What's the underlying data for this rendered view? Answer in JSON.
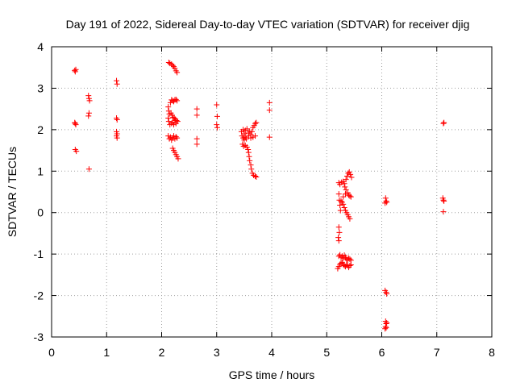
{
  "chart_data": {
    "type": "scatter",
    "title": "Day 191 of 2022, Sidereal Day-to-day VTEC variation (SDTVAR) for receiver djig",
    "xlabel": "GPS time / hours",
    "ylabel": "SDTVAR / TECUs",
    "xlim": [
      0,
      8
    ],
    "ylim": [
      -3,
      4
    ],
    "xticks": [
      "0",
      "1",
      "2",
      "3",
      "4",
      "5",
      "6",
      "7",
      "8"
    ],
    "yticks": [
      "-3",
      "-2",
      "-1",
      "0",
      "1",
      "2",
      "3",
      "4"
    ],
    "grid": true,
    "marker": "plus",
    "color": "#ff0000",
    "series": [
      {
        "name": "SDTVAR",
        "points": [
          [
            0.42,
            3.43
          ],
          [
            0.44,
            3.45
          ],
          [
            0.43,
            3.4
          ],
          [
            0.42,
            2.17
          ],
          [
            0.44,
            2.12
          ],
          [
            0.43,
            2.15
          ],
          [
            0.43,
            1.52
          ],
          [
            0.45,
            1.48
          ],
          [
            0.67,
            2.82
          ],
          [
            0.68,
            2.75
          ],
          [
            0.69,
            2.7
          ],
          [
            0.68,
            2.4
          ],
          [
            0.67,
            2.33
          ],
          [
            0.68,
            1.05
          ],
          [
            1.18,
            3.18
          ],
          [
            1.19,
            3.1
          ],
          [
            1.18,
            2.28
          ],
          [
            1.19,
            2.24
          ],
          [
            1.18,
            1.95
          ],
          [
            1.19,
            1.9
          ],
          [
            1.18,
            1.85
          ],
          [
            1.19,
            1.8
          ],
          [
            2.13,
            3.62
          ],
          [
            2.15,
            3.6
          ],
          [
            2.18,
            3.58
          ],
          [
            2.2,
            3.55
          ],
          [
            2.22,
            3.52
          ],
          [
            2.24,
            3.48
          ],
          [
            2.26,
            3.42
          ],
          [
            2.28,
            3.38
          ],
          [
            2.12,
            2.55
          ],
          [
            2.13,
            2.45
          ],
          [
            2.14,
            2.38
          ],
          [
            2.12,
            2.28
          ],
          [
            2.13,
            2.2
          ],
          [
            2.15,
            2.12
          ],
          [
            2.16,
            2.65
          ],
          [
            2.18,
            2.72
          ],
          [
            2.2,
            2.7
          ],
          [
            2.22,
            2.68
          ],
          [
            2.24,
            2.72
          ],
          [
            2.26,
            2.73
          ],
          [
            2.28,
            2.7
          ],
          [
            2.17,
            2.4
          ],
          [
            2.19,
            2.35
          ],
          [
            2.21,
            2.3
          ],
          [
            2.23,
            2.28
          ],
          [
            2.25,
            2.25
          ],
          [
            2.27,
            2.22
          ],
          [
            2.29,
            2.2
          ],
          [
            2.18,
            2.15
          ],
          [
            2.2,
            2.18
          ],
          [
            2.22,
            2.12
          ],
          [
            2.24,
            2.22
          ],
          [
            2.26,
            2.15
          ],
          [
            2.12,
            1.85
          ],
          [
            2.14,
            1.78
          ],
          [
            2.16,
            1.82
          ],
          [
            2.18,
            1.75
          ],
          [
            2.2,
            1.8
          ],
          [
            2.22,
            1.85
          ],
          [
            2.24,
            1.78
          ],
          [
            2.26,
            1.83
          ],
          [
            2.28,
            1.8
          ],
          [
            2.2,
            1.55
          ],
          [
            2.22,
            1.5
          ],
          [
            2.24,
            1.45
          ],
          [
            2.26,
            1.4
          ],
          [
            2.28,
            1.35
          ],
          [
            2.3,
            1.3
          ],
          [
            2.64,
            2.5
          ],
          [
            2.64,
            2.35
          ],
          [
            2.64,
            1.78
          ],
          [
            2.64,
            1.65
          ],
          [
            3.0,
            2.6
          ],
          [
            3.01,
            2.32
          ],
          [
            3.0,
            2.12
          ],
          [
            3.01,
            2.05
          ],
          [
            3.45,
            1.95
          ],
          [
            3.48,
            2.0
          ],
          [
            3.5,
            1.9
          ],
          [
            3.52,
            1.98
          ],
          [
            3.55,
            2.02
          ],
          [
            3.58,
            1.92
          ],
          [
            3.6,
            1.96
          ],
          [
            3.62,
            1.88
          ],
          [
            3.64,
            1.95
          ],
          [
            3.66,
            2.05
          ],
          [
            3.68,
            2.1
          ],
          [
            3.7,
            2.15
          ],
          [
            3.72,
            2.17
          ],
          [
            3.46,
            1.85
          ],
          [
            3.48,
            1.8
          ],
          [
            3.5,
            1.75
          ],
          [
            3.52,
            1.82
          ],
          [
            3.54,
            1.78
          ],
          [
            3.58,
            1.85
          ],
          [
            3.62,
            1.8
          ],
          [
            3.66,
            1.82
          ],
          [
            3.7,
            1.85
          ],
          [
            3.47,
            1.65
          ],
          [
            3.49,
            1.6
          ],
          [
            3.52,
            1.62
          ],
          [
            3.55,
            1.58
          ],
          [
            3.57,
            1.52
          ],
          [
            3.58,
            1.45
          ],
          [
            3.59,
            1.35
          ],
          [
            3.6,
            1.25
          ],
          [
            3.62,
            1.15
          ],
          [
            3.63,
            1.05
          ],
          [
            3.65,
            0.95
          ],
          [
            3.67,
            0.9
          ],
          [
            3.7,
            0.88
          ],
          [
            3.72,
            0.86
          ],
          [
            3.96,
            2.65
          ],
          [
            3.96,
            2.47
          ],
          [
            3.96,
            1.82
          ],
          [
            5.22,
            0.72
          ],
          [
            5.24,
            0.68
          ],
          [
            5.27,
            0.73
          ],
          [
            5.3,
            0.75
          ],
          [
            5.32,
            0.7
          ],
          [
            5.35,
            0.8
          ],
          [
            5.37,
            0.88
          ],
          [
            5.39,
            0.95
          ],
          [
            5.41,
            0.98
          ],
          [
            5.43,
            0.92
          ],
          [
            5.45,
            0.85
          ],
          [
            5.33,
            0.62
          ],
          [
            5.35,
            0.55
          ],
          [
            5.38,
            0.48
          ],
          [
            5.4,
            0.42
          ],
          [
            5.42,
            0.4
          ],
          [
            5.44,
            0.38
          ],
          [
            5.34,
            0.45
          ],
          [
            5.3,
            0.38
          ],
          [
            5.22,
            0.45
          ],
          [
            5.23,
            0.3
          ],
          [
            5.24,
            0.18
          ],
          [
            5.25,
            0.05
          ],
          [
            5.26,
            0.28
          ],
          [
            5.28,
            0.25
          ],
          [
            5.3,
            0.2
          ],
          [
            5.32,
            0.12
          ],
          [
            5.34,
            0.05
          ],
          [
            5.36,
            0.0
          ],
          [
            5.38,
            -0.05
          ],
          [
            5.4,
            -0.1
          ],
          [
            5.42,
            -0.15
          ],
          [
            5.22,
            -0.35
          ],
          [
            5.23,
            -0.48
          ],
          [
            5.21,
            -0.6
          ],
          [
            5.22,
            -0.68
          ],
          [
            5.22,
            -1.05
          ],
          [
            5.24,
            -1.02
          ],
          [
            5.26,
            -1.08
          ],
          [
            5.28,
            -1.05
          ],
          [
            5.3,
            -1.1
          ],
          [
            5.32,
            -1.03
          ],
          [
            5.34,
            -1.08
          ],
          [
            5.36,
            -1.12
          ],
          [
            5.38,
            -1.15
          ],
          [
            5.4,
            -1.1
          ],
          [
            5.42,
            -1.12
          ],
          [
            5.44,
            -1.15
          ],
          [
            5.2,
            -1.35
          ],
          [
            5.22,
            -1.3
          ],
          [
            5.24,
            -1.25
          ],
          [
            5.26,
            -1.22
          ],
          [
            5.28,
            -1.2
          ],
          [
            5.3,
            -1.25
          ],
          [
            5.32,
            -1.28
          ],
          [
            5.34,
            -1.3
          ],
          [
            5.36,
            -1.26
          ],
          [
            5.38,
            -1.28
          ],
          [
            5.4,
            -1.32
          ],
          [
            5.42,
            -1.28
          ],
          [
            5.44,
            -1.26
          ],
          [
            6.07,
            0.35
          ],
          [
            6.08,
            0.28
          ],
          [
            6.06,
            0.23
          ],
          [
            6.09,
            0.25
          ],
          [
            6.06,
            -1.88
          ],
          [
            6.08,
            -1.92
          ],
          [
            6.09,
            -1.96
          ],
          [
            6.07,
            -2.62
          ],
          [
            6.08,
            -2.68
          ],
          [
            6.09,
            -2.66
          ],
          [
            6.07,
            -2.75
          ],
          [
            6.08,
            -2.78
          ],
          [
            6.06,
            -2.8
          ],
          [
            7.12,
            2.15
          ],
          [
            7.13,
            2.17
          ],
          [
            7.11,
            0.35
          ],
          [
            7.12,
            0.3
          ],
          [
            7.13,
            0.28
          ],
          [
            7.12,
            0.02
          ]
        ]
      }
    ]
  }
}
